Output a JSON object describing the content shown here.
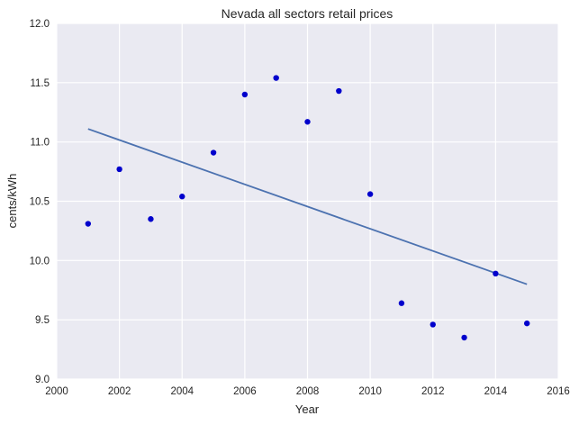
{
  "chart_data": {
    "type": "scatter",
    "title": "Nevada   all sectors retail prices",
    "xlabel": "Year",
    "ylabel": "cents/kWh",
    "xlim": [
      2000,
      2016
    ],
    "ylim": [
      9.0,
      12.0
    ],
    "xticks": [
      2000,
      2002,
      2004,
      2006,
      2008,
      2010,
      2012,
      2014,
      2016
    ],
    "yticks": [
      9.0,
      9.5,
      10.0,
      10.5,
      11.0,
      11.5,
      12.0
    ],
    "xtick_labels": [
      "2000",
      "2002",
      "2004",
      "2006",
      "2008",
      "2010",
      "2012",
      "2014",
      "2016"
    ],
    "ytick_labels": [
      "9.0",
      "9.5",
      "10.0",
      "10.5",
      "11.0",
      "11.5",
      "12.0"
    ],
    "grid": true,
    "series": [
      {
        "type": "scatter",
        "color": "#0000cc",
        "x": [
          2001,
          2002,
          2003,
          2004,
          2005,
          2006,
          2007,
          2008,
          2009,
          2010,
          2011,
          2012,
          2013,
          2014,
          2015
        ],
        "y": [
          10.31,
          10.77,
          10.35,
          10.54,
          10.91,
          11.4,
          11.54,
          11.17,
          11.43,
          10.56,
          9.64,
          9.46,
          9.35,
          9.89,
          9.47
        ]
      },
      {
        "type": "line",
        "color": "#4c72b0",
        "x": [
          2001,
          2015
        ],
        "y": [
          11.11,
          9.8
        ]
      }
    ]
  }
}
